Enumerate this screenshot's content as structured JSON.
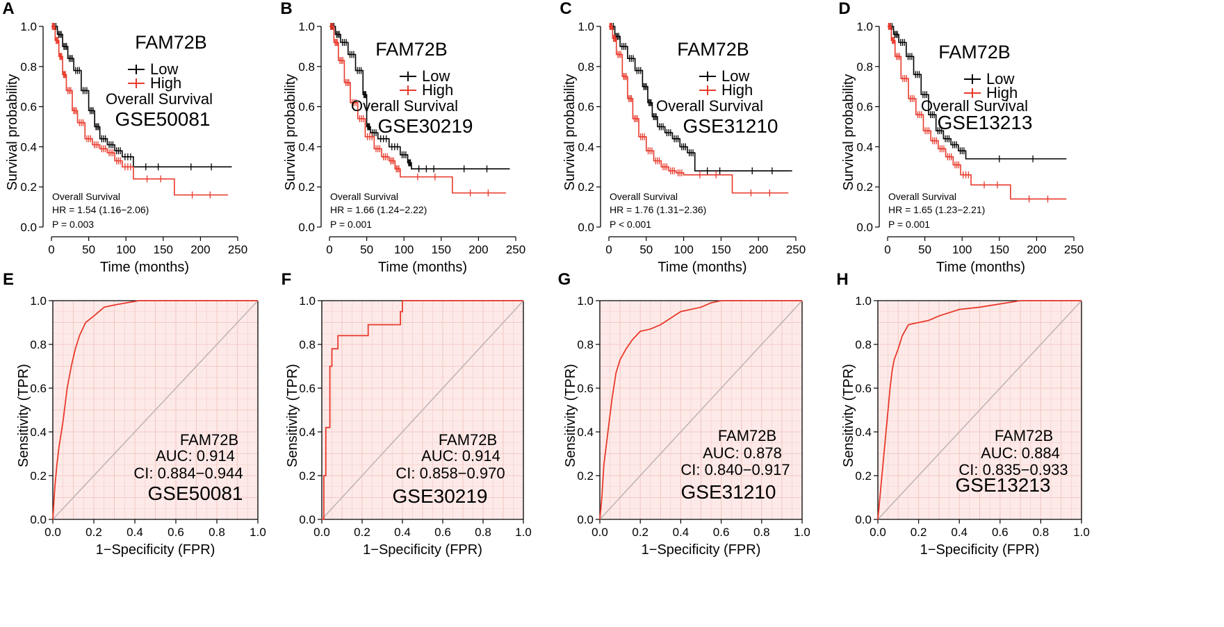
{
  "colors": {
    "low": "#000000",
    "high": "#e8392b",
    "roc_fill": "#fdeae8",
    "grid": "#f2c9c4",
    "diagonal": "#c0b5b5"
  },
  "chart_data": [
    {
      "panel": "A",
      "type": "line",
      "chart_kind": "kaplan-meier",
      "gene": "FAM72B",
      "dataset": "GSE50081",
      "endpoint": "Overall Survival",
      "legend": [
        "Low",
        "High"
      ],
      "xlabel": "Time (months)",
      "ylabel": "Survival probability",
      "xlim": [
        0,
        250
      ],
      "ylim": [
        0,
        1
      ],
      "xticks": [
        "0",
        "50",
        "100",
        "150",
        "200",
        "250"
      ],
      "yticks": [
        "0.0",
        "0.2",
        "0.4",
        "0.6",
        "0.8",
        "1.0"
      ],
      "stats": {
        "endpoint": "Overall Survival",
        "hr": "HR = 1.54 (1.16−2.06)",
        "p": "P = 0.003"
      },
      "series": [
        {
          "name": "Low",
          "x": [
            0,
            8,
            15,
            22,
            30,
            40,
            50,
            58,
            65,
            75,
            85,
            95,
            110,
            160,
            242
          ],
          "y": [
            1.0,
            0.96,
            0.9,
            0.84,
            0.78,
            0.68,
            0.58,
            0.5,
            0.44,
            0.41,
            0.38,
            0.35,
            0.3,
            0.3,
            0.3
          ]
        },
        {
          "name": "High",
          "x": [
            0,
            5,
            10,
            15,
            20,
            28,
            35,
            45,
            55,
            65,
            75,
            85,
            95,
            110,
            165,
            237
          ],
          "y": [
            1.0,
            0.93,
            0.85,
            0.76,
            0.68,
            0.58,
            0.52,
            0.44,
            0.41,
            0.39,
            0.37,
            0.33,
            0.3,
            0.24,
            0.16,
            0.16
          ]
        }
      ]
    },
    {
      "panel": "B",
      "type": "line",
      "chart_kind": "kaplan-meier",
      "gene": "FAM72B",
      "dataset": "GSE30219",
      "endpoint": "Overall Survival",
      "legend": [
        "Low",
        "High"
      ],
      "xlabel": "Time (months)",
      "ylabel": "Survival probability",
      "xlim": [
        0,
        250
      ],
      "ylim": [
        0,
        1
      ],
      "xticks": [
        "0",
        "50",
        "100",
        "150",
        "200",
        "250"
      ],
      "yticks": [
        "0.0",
        "0.2",
        "0.4",
        "0.6",
        "0.8",
        "1.0"
      ],
      "stats": {
        "endpoint": "Overall Survival",
        "hr": "HR = 1.66 (1.24−2.22)",
        "p": "P = 0.001"
      },
      "series": [
        {
          "name": "Low",
          "x": [
            0,
            8,
            15,
            25,
            35,
            45,
            50,
            55,
            65,
            80,
            95,
            105,
            110,
            150,
            242
          ],
          "y": [
            1.0,
            0.96,
            0.92,
            0.86,
            0.78,
            0.66,
            0.5,
            0.47,
            0.44,
            0.4,
            0.36,
            0.32,
            0.29,
            0.29,
            0.29
          ]
        },
        {
          "name": "High",
          "x": [
            0,
            6,
            12,
            20,
            28,
            38,
            48,
            60,
            70,
            80,
            88,
            95,
            165,
            237
          ],
          "y": [
            1.0,
            0.92,
            0.83,
            0.72,
            0.62,
            0.54,
            0.45,
            0.39,
            0.35,
            0.33,
            0.29,
            0.25,
            0.17,
            0.17
          ]
        }
      ]
    },
    {
      "panel": "C",
      "type": "line",
      "chart_kind": "kaplan-meier",
      "gene": "FAM72B",
      "dataset": "GSE31210",
      "endpoint": "Overall Survival",
      "legend": [
        "Low",
        "High"
      ],
      "xlabel": "Time (months)",
      "ylabel": "Survival probability",
      "xlim": [
        0,
        250
      ],
      "ylim": [
        0,
        1
      ],
      "xticks": [
        "0",
        "50",
        "100",
        "150",
        "200",
        "250"
      ],
      "yticks": [
        "0.0",
        "0.2",
        "0.4",
        "0.6",
        "0.8",
        "1.0"
      ],
      "stats": {
        "endpoint": "Overall Survival",
        "hr": "HR = 1.76 (1.31−2.36)",
        "p": "P < 0.001"
      },
      "series": [
        {
          "name": "Low",
          "x": [
            0,
            8,
            15,
            25,
            35,
            45,
            52,
            58,
            65,
            75,
            85,
            95,
            105,
            115,
            165,
            245
          ],
          "y": [
            1.0,
            0.95,
            0.9,
            0.84,
            0.78,
            0.7,
            0.62,
            0.55,
            0.5,
            0.47,
            0.44,
            0.4,
            0.37,
            0.28,
            0.28,
            0.28
          ]
        },
        {
          "name": "High",
          "x": [
            0,
            5,
            10,
            18,
            25,
            32,
            40,
            50,
            60,
            70,
            80,
            90,
            100,
            165,
            240
          ],
          "y": [
            1.0,
            0.94,
            0.86,
            0.75,
            0.64,
            0.54,
            0.45,
            0.38,
            0.33,
            0.3,
            0.28,
            0.27,
            0.26,
            0.17,
            0.17
          ]
        }
      ]
    },
    {
      "panel": "D",
      "type": "line",
      "chart_kind": "kaplan-meier",
      "gene": "FAM72B",
      "dataset": "GSE13213",
      "endpoint": "Overall Survival",
      "legend": [
        "Low",
        "High"
      ],
      "xlabel": "Time (months)",
      "ylabel": "Survival probability",
      "xlim": [
        0,
        250
      ],
      "ylim": [
        0,
        1
      ],
      "xticks": [
        "0",
        "50",
        "100",
        "150",
        "200",
        "250"
      ],
      "yticks": [
        "0.0",
        "0.2",
        "0.4",
        "0.6",
        "0.8",
        "1.0"
      ],
      "stats": {
        "endpoint": "Overall Survival",
        "hr": "HR = 1.65 (1.23−2.21)",
        "p": "P = 0.001"
      },
      "series": [
        {
          "name": "Low",
          "x": [
            0,
            8,
            15,
            25,
            35,
            45,
            55,
            65,
            75,
            85,
            95,
            105,
            240
          ],
          "y": [
            1.0,
            0.96,
            0.92,
            0.85,
            0.76,
            0.66,
            0.56,
            0.48,
            0.44,
            0.41,
            0.38,
            0.34,
            0.34
          ]
        },
        {
          "name": "High",
          "x": [
            0,
            5,
            10,
            18,
            28,
            38,
            48,
            58,
            68,
            78,
            88,
            98,
            112,
            165,
            240
          ],
          "y": [
            1.0,
            0.93,
            0.85,
            0.74,
            0.64,
            0.56,
            0.48,
            0.43,
            0.39,
            0.35,
            0.31,
            0.26,
            0.21,
            0.14,
            0.14
          ]
        }
      ]
    },
    {
      "panel": "E",
      "type": "line",
      "chart_kind": "roc",
      "gene": "FAM72B",
      "dataset": "GSE50081",
      "auc_label": "AUC: 0.914",
      "ci_label": "CI: 0.884−0.944",
      "xlabel": "1−Specificity (FPR)",
      "ylabel": "Sensitivity (TPR)",
      "xlim": [
        0,
        1
      ],
      "ylim": [
        0,
        1
      ],
      "xticks": [
        "0.0",
        "0.2",
        "0.4",
        "0.6",
        "0.8",
        "1.0"
      ],
      "yticks": [
        "0.0",
        "0.2",
        "0.4",
        "0.6",
        "0.8",
        "1.0"
      ],
      "curve": {
        "fpr": [
          0,
          0.01,
          0.02,
          0.03,
          0.05,
          0.07,
          0.09,
          0.11,
          0.13,
          0.16,
          0.2,
          0.25,
          0.3,
          0.42,
          1.0
        ],
        "tpr": [
          0,
          0.15,
          0.25,
          0.33,
          0.45,
          0.6,
          0.7,
          0.78,
          0.84,
          0.9,
          0.93,
          0.97,
          0.98,
          1.0,
          1.0
        ]
      }
    },
    {
      "panel": "F",
      "type": "line",
      "chart_kind": "roc",
      "gene": "FAM72B",
      "dataset": "GSE30219",
      "auc_label": "AUC: 0.914",
      "ci_label": "CI: 0.858−0.970",
      "xlabel": "1−Specificity (FPR)",
      "ylabel": "Sensitivity (TPR)",
      "xlim": [
        0,
        1
      ],
      "ylim": [
        0,
        1
      ],
      "xticks": [
        "0.0",
        "0.2",
        "0.4",
        "0.6",
        "0.8",
        "1.0"
      ],
      "yticks": [
        "0.0",
        "0.2",
        "0.4",
        "0.6",
        "0.8",
        "1.0"
      ],
      "curve": {
        "fpr": [
          0,
          0.01,
          0.01,
          0.02,
          0.02,
          0.04,
          0.04,
          0.05,
          0.05,
          0.08,
          0.08,
          0.23,
          0.23,
          0.39,
          0.39,
          0.4,
          0.4,
          1.0
        ],
        "tpr": [
          0,
          0,
          0.2,
          0.2,
          0.42,
          0.42,
          0.7,
          0.7,
          0.78,
          0.78,
          0.84,
          0.84,
          0.89,
          0.89,
          0.95,
          0.95,
          1.0,
          1.0
        ]
      }
    },
    {
      "panel": "G",
      "type": "line",
      "chart_kind": "roc",
      "gene": "FAM72B",
      "dataset": "GSE31210",
      "auc_label": "AUC: 0.878",
      "ci_label": "CI: 0.840−0.917",
      "xlabel": "1−Specificity (FPR)",
      "ylabel": "Sensitivity (TPR)",
      "xlim": [
        0,
        1
      ],
      "ylim": [
        0,
        1
      ],
      "xticks": [
        "0.0",
        "0.2",
        "0.4",
        "0.6",
        "0.8",
        "1.0"
      ],
      "yticks": [
        "0.0",
        "0.2",
        "0.4",
        "0.6",
        "0.8",
        "1.0"
      ],
      "curve": {
        "fpr": [
          0,
          0.01,
          0.02,
          0.04,
          0.06,
          0.08,
          0.1,
          0.13,
          0.16,
          0.2,
          0.25,
          0.3,
          0.35,
          0.4,
          0.5,
          0.55,
          0.6,
          0.7,
          1.0
        ],
        "tpr": [
          0,
          0.1,
          0.25,
          0.4,
          0.55,
          0.67,
          0.73,
          0.78,
          0.82,
          0.86,
          0.87,
          0.89,
          0.92,
          0.95,
          0.97,
          0.99,
          1.0,
          1.0,
          1.0
        ]
      }
    },
    {
      "panel": "H",
      "type": "line",
      "chart_kind": "roc",
      "gene": "FAM72B",
      "dataset": "GSE13213",
      "auc_label": "AUC: 0.884",
      "ci_label": "CI: 0.835−0.933",
      "xlabel": "1−Specificity (FPR)",
      "ylabel": "Sensitivity (TPR)",
      "xlim": [
        0,
        1
      ],
      "ylim": [
        0,
        1
      ],
      "xticks": [
        "0.0",
        "0.2",
        "0.4",
        "0.6",
        "0.8",
        "1.0"
      ],
      "yticks": [
        "0.0",
        "0.2",
        "0.4",
        "0.6",
        "0.8",
        "1.0"
      ],
      "curve": {
        "fpr": [
          0,
          0.01,
          0.02,
          0.03,
          0.04,
          0.05,
          0.06,
          0.07,
          0.08,
          0.1,
          0.12,
          0.15,
          0.2,
          0.25,
          0.3,
          0.4,
          0.5,
          0.7,
          1.0
        ],
        "tpr": [
          0,
          0.1,
          0.2,
          0.3,
          0.4,
          0.5,
          0.6,
          0.68,
          0.73,
          0.78,
          0.84,
          0.89,
          0.9,
          0.91,
          0.93,
          0.96,
          0.97,
          1.0,
          1.0
        ]
      }
    }
  ]
}
